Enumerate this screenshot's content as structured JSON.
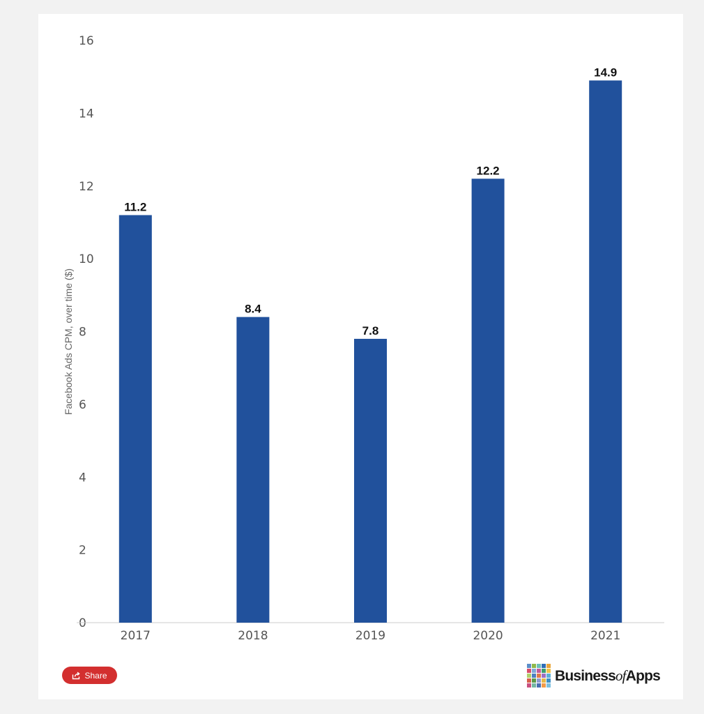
{
  "chart_data": {
    "type": "bar",
    "categories": [
      "2017",
      "2018",
      "2019",
      "2020",
      "2021"
    ],
    "values": [
      11.2,
      8.4,
      7.8,
      12.2,
      14.9
    ],
    "data_labels": [
      "11.2",
      "8.4",
      "7.8",
      "12.2",
      "14.9"
    ],
    "title": "",
    "xlabel": "",
    "ylabel": "Facebook Ads CPM, over time ($)",
    "ylim": [
      0,
      16
    ],
    "yticks": [
      "0",
      "2",
      "4",
      "6",
      "8",
      "10",
      "12",
      "14",
      "16"
    ],
    "grid": false,
    "legend": "none",
    "bar_color": "#21519c"
  },
  "share": {
    "label": "Share",
    "icon": "share-icon"
  },
  "brand": {
    "name_part1": "Business",
    "name_part2": "of",
    "name_part3": "Apps",
    "logo_colors": [
      "#5b8ec9",
      "#8fb84a",
      "#6dc0b8",
      "#2f6db5",
      "#e9a53a",
      "#d94e6b",
      "#7fa8d8",
      "#c25a9b",
      "#3f9f6e",
      "#f0c24b",
      "#b2d06b",
      "#4d7fc0",
      "#e07a4a",
      "#9e6fc2",
      "#5fb0d6",
      "#d8604c",
      "#5c9a49",
      "#8e9bd1",
      "#e6b84a",
      "#3e8fc6",
      "#c9507f",
      "#75b6a3",
      "#4a6fb2",
      "#f29b4a",
      "#7cc0e0"
    ]
  }
}
